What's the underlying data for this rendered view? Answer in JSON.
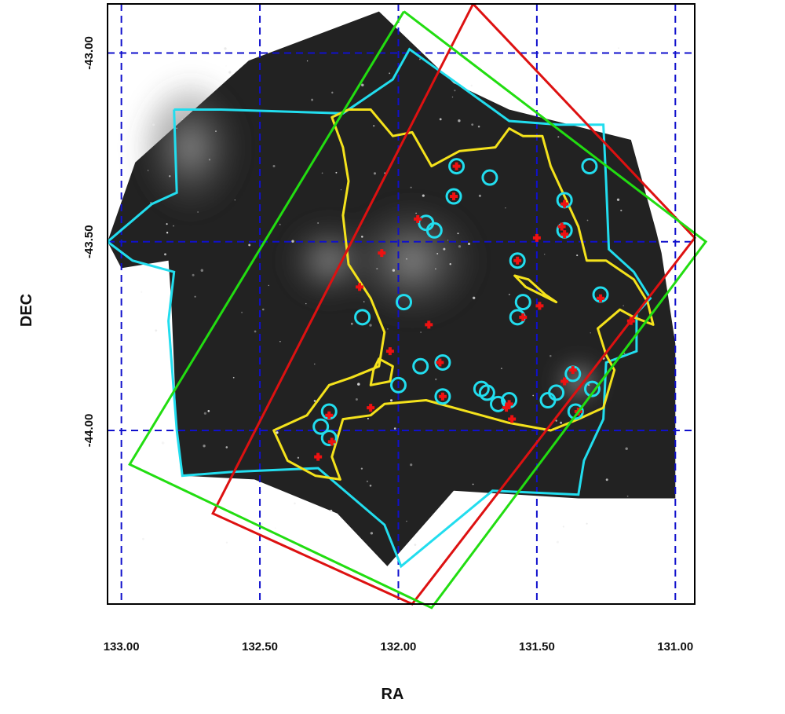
{
  "chart_data": {
    "type": "scatter",
    "title": "",
    "xlabel": "RA",
    "ylabel": "DEC",
    "xlim": [
      133.05,
      130.93
    ],
    "ylim": [
      -44.46,
      -42.87
    ],
    "x_axis_reversed": true,
    "grid": true,
    "grid_style": "dashed",
    "legend": "none",
    "x_ticks": [
      133.0,
      132.5,
      132.0,
      131.5,
      131.0
    ],
    "x_tick_labels": [
      "133.00",
      "132.50",
      "132.00",
      "131.50",
      "131.00"
    ],
    "y_ticks": [
      -43.0,
      -43.5,
      -44.0
    ],
    "y_tick_labels": [
      "-43.00",
      "-43.50",
      "-44.00"
    ],
    "colors": {
      "frame": "#000000",
      "grid": "#1010cc",
      "image_background": "#222222",
      "coverage_outline": "#22ddee",
      "contour": "#f4e21c",
      "footprint_red": "#dd1111",
      "footprint_green": "#22dd11",
      "circle_markers": "#22ddee",
      "cross_markers": "#ee1111"
    },
    "image_coverage": [
      [
        132.07,
        -42.89
      ],
      [
        132.54,
        -43.02
      ],
      [
        132.95,
        -43.29
      ],
      [
        133.05,
        -43.5
      ],
      [
        133.0,
        -43.57
      ],
      [
        132.83,
        -43.55
      ],
      [
        132.82,
        -43.66
      ],
      [
        132.8,
        -44.0
      ],
      [
        132.78,
        -44.12
      ],
      [
        132.52,
        -44.13
      ],
      [
        132.22,
        -44.22
      ],
      [
        132.04,
        -44.36
      ],
      [
        131.8,
        -44.16
      ],
      [
        131.35,
        -44.18
      ],
      [
        131.0,
        -44.18
      ],
      [
        131.0,
        -43.77
      ],
      [
        131.05,
        -43.53
      ],
      [
        131.07,
        -43.47
      ],
      [
        131.16,
        -43.23
      ],
      [
        131.6,
        -43.15
      ],
      [
        131.8,
        -43.08
      ],
      [
        132.07,
        -42.89
      ]
    ],
    "coverage_outline": [
      [
        132.81,
        -43.15
      ],
      [
        132.64,
        -43.15
      ],
      [
        132.2,
        -43.16
      ],
      [
        132.02,
        -43.07
      ],
      [
        131.96,
        -42.99
      ],
      [
        131.77,
        -43.09
      ],
      [
        131.6,
        -43.18
      ],
      [
        131.42,
        -43.19
      ],
      [
        131.26,
        -43.19
      ],
      [
        131.25,
        -43.34
      ],
      [
        131.24,
        -43.52
      ],
      [
        131.15,
        -43.58
      ],
      [
        131.09,
        -43.65
      ],
      [
        131.14,
        -43.69
      ],
      [
        131.14,
        -43.79
      ],
      [
        131.25,
        -43.82
      ],
      [
        131.26,
        -43.97
      ],
      [
        131.33,
        -44.08
      ],
      [
        131.35,
        -44.17
      ],
      [
        131.66,
        -44.16
      ],
      [
        131.99,
        -44.36
      ],
      [
        132.05,
        -44.25
      ],
      [
        132.29,
        -44.1
      ],
      [
        132.6,
        -44.11
      ],
      [
        132.78,
        -44.12
      ],
      [
        132.8,
        -44.0
      ],
      [
        132.83,
        -43.71
      ],
      [
        132.81,
        -43.58
      ],
      [
        132.96,
        -43.55
      ],
      [
        133.05,
        -43.5
      ],
      [
        132.89,
        -43.4
      ],
      [
        132.8,
        -43.37
      ],
      [
        132.81,
        -43.15
      ]
    ],
    "contour": [
      [
        132.24,
        -43.17
      ],
      [
        132.18,
        -43.15
      ],
      [
        132.1,
        -43.15
      ],
      [
        132.02,
        -43.22
      ],
      [
        131.95,
        -43.21
      ],
      [
        131.88,
        -43.3
      ],
      [
        131.78,
        -43.26
      ],
      [
        131.65,
        -43.25
      ],
      [
        131.6,
        -43.2
      ],
      [
        131.55,
        -43.22
      ],
      [
        131.48,
        -43.22
      ],
      [
        131.45,
        -43.3
      ],
      [
        131.4,
        -43.38
      ],
      [
        131.35,
        -43.46
      ],
      [
        131.32,
        -43.55
      ],
      [
        131.25,
        -43.55
      ],
      [
        131.15,
        -43.6
      ],
      [
        131.1,
        -43.66
      ],
      [
        131.08,
        -43.72
      ],
      [
        131.15,
        -43.7
      ],
      [
        131.2,
        -43.68
      ],
      [
        131.28,
        -43.73
      ],
      [
        131.25,
        -43.8
      ],
      [
        131.22,
        -43.84
      ],
      [
        131.26,
        -43.94
      ],
      [
        131.35,
        -43.97
      ],
      [
        131.45,
        -44.0
      ],
      [
        131.6,
        -43.98
      ],
      [
        131.75,
        -43.95
      ],
      [
        131.9,
        -43.92
      ],
      [
        132.05,
        -43.93
      ],
      [
        132.1,
        -43.96
      ],
      [
        132.2,
        -43.97
      ],
      [
        132.24,
        -44.07
      ],
      [
        132.21,
        -44.13
      ],
      [
        132.3,
        -44.12
      ],
      [
        132.4,
        -44.08
      ],
      [
        132.45,
        -44.0
      ],
      [
        132.33,
        -43.96
      ],
      [
        132.25,
        -43.88
      ],
      [
        132.17,
        -43.86
      ],
      [
        132.07,
        -43.83
      ],
      [
        132.05,
        -43.74
      ],
      [
        132.1,
        -43.65
      ],
      [
        132.18,
        -43.56
      ],
      [
        132.2,
        -43.43
      ],
      [
        132.18,
        -43.34
      ],
      [
        132.2,
        -43.25
      ],
      [
        132.24,
        -43.17
      ]
    ],
    "contour_islands": [
      [
        [
          131.43,
          -43.66
        ],
        [
          131.54,
          -43.62
        ],
        [
          131.58,
          -43.59
        ],
        [
          131.53,
          -43.6
        ],
        [
          131.47,
          -43.64
        ],
        [
          131.43,
          -43.66
        ]
      ],
      [
        [
          132.07,
          -43.81
        ],
        [
          132.02,
          -43.83
        ],
        [
          132.03,
          -43.87
        ],
        [
          132.1,
          -43.88
        ],
        [
          132.09,
          -43.84
        ],
        [
          132.07,
          -43.81
        ]
      ]
    ],
    "footprints": [
      {
        "color": "red",
        "corners": [
          [
            131.73,
            -42.87
          ],
          [
            130.93,
            -43.49
          ],
          [
            131.95,
            -44.46
          ],
          [
            132.67,
            -44.22
          ]
        ]
      },
      {
        "color": "green",
        "corners": [
          [
            131.98,
            -42.89
          ],
          [
            130.89,
            -43.5
          ],
          [
            131.88,
            -44.47
          ],
          [
            132.97,
            -44.09
          ]
        ]
      }
    ],
    "circles": [
      [
        131.79,
        -43.3
      ],
      [
        131.67,
        -43.33
      ],
      [
        131.8,
        -43.38
      ],
      [
        131.9,
        -43.45
      ],
      [
        131.87,
        -43.47
      ],
      [
        131.4,
        -43.39
      ],
      [
        131.4,
        -43.47
      ],
      [
        131.31,
        -43.3
      ],
      [
        131.57,
        -43.55
      ],
      [
        131.55,
        -43.66
      ],
      [
        131.57,
        -43.7
      ],
      [
        131.27,
        -43.64
      ],
      [
        132.13,
        -43.7
      ],
      [
        131.98,
        -43.66
      ],
      [
        131.92,
        -43.83
      ],
      [
        131.84,
        -43.82
      ],
      [
        132.0,
        -43.88
      ],
      [
        131.84,
        -43.91
      ],
      [
        131.7,
        -43.89
      ],
      [
        131.68,
        -43.9
      ],
      [
        131.6,
        -43.92
      ],
      [
        131.64,
        -43.93
      ],
      [
        131.46,
        -43.92
      ],
      [
        131.43,
        -43.9
      ],
      [
        131.37,
        -43.85
      ],
      [
        131.36,
        -43.95
      ],
      [
        131.3,
        -43.89
      ],
      [
        132.25,
        -43.95
      ],
      [
        132.28,
        -43.99
      ],
      [
        132.25,
        -44.02
      ]
    ],
    "crosses": [
      [
        131.79,
        -43.3
      ],
      [
        131.8,
        -43.38
      ],
      [
        131.93,
        -43.44
      ],
      [
        131.5,
        -43.49
      ],
      [
        131.4,
        -43.4
      ],
      [
        131.41,
        -43.46
      ],
      [
        131.4,
        -43.48
      ],
      [
        132.06,
        -43.53
      ],
      [
        131.57,
        -43.55
      ],
      [
        132.14,
        -43.62
      ],
      [
        131.49,
        -43.67
      ],
      [
        131.55,
        -43.7
      ],
      [
        131.89,
        -43.72
      ],
      [
        131.27,
        -43.65
      ],
      [
        131.16,
        -43.71
      ],
      [
        132.03,
        -43.79
      ],
      [
        131.85,
        -43.82
      ],
      [
        131.84,
        -43.91
      ],
      [
        132.1,
        -43.94
      ],
      [
        131.6,
        -43.93
      ],
      [
        131.61,
        -43.94
      ],
      [
        131.59,
        -43.97
      ],
      [
        131.37,
        -43.84
      ],
      [
        131.4,
        -43.87
      ],
      [
        131.35,
        -43.95
      ],
      [
        132.25,
        -43.96
      ],
      [
        132.24,
        -44.03
      ],
      [
        132.29,
        -44.07
      ]
    ]
  }
}
